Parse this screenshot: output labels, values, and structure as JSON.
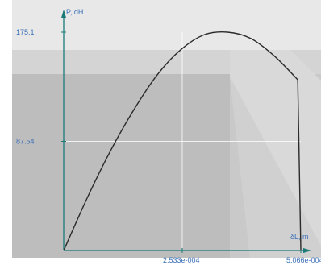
{
  "chart_data": {
    "type": "line",
    "xlabel": "δL, m",
    "ylabel": "P, dH",
    "x_ticks": [
      "2.533e-004",
      "5.066e-004"
    ],
    "y_ticks": [
      "175.1",
      "87.54"
    ],
    "xlim": [
      0,
      0.0005066
    ],
    "ylim": [
      0,
      175.1
    ],
    "grid": true,
    "series": [
      {
        "x": [
          0,
          5e-05,
          0.0001,
          0.00015,
          0.0002,
          0.00025,
          0.0003,
          0.00035,
          0.0004,
          0.00045,
          0.0005,
          0.0005066
        ],
        "y": [
          0,
          42,
          80,
          113,
          141,
          161,
          173,
          175.1,
          170,
          156,
          137,
          0
        ]
      }
    ]
  },
  "colors": {
    "axis": "#1b7a78",
    "curve": "#2b2b2b",
    "label": "#3b6fb8",
    "grid": "#ffffff"
  }
}
